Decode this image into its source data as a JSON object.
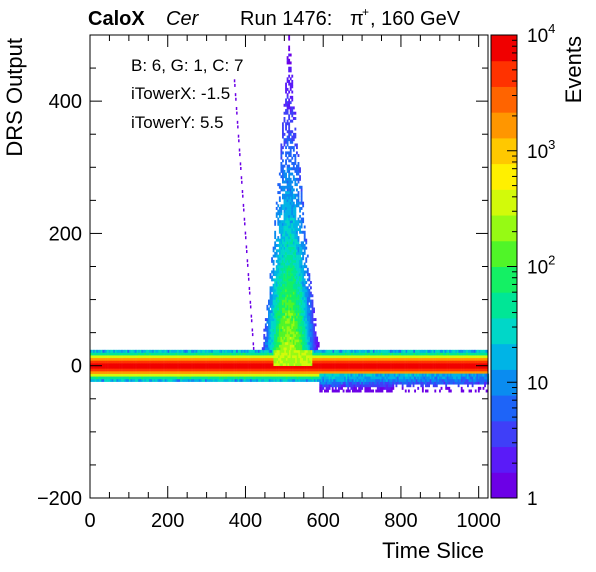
{
  "header": {
    "experiment": "CaloX",
    "channel": "Cer",
    "run": "Run 1476:",
    "particle": "π",
    "charge": "+",
    "energy": ", 160 GeV"
  },
  "info_box": {
    "line1": "B: 6, G: 1, C: 7",
    "line2": "iTowerX: -1.5",
    "line3": "iTowerY: 5.5"
  },
  "chart_data": {
    "type": "heatmap",
    "title": "",
    "xlabel": "Time Slice",
    "ylabel": "DRS Output",
    "zlabel": "Events",
    "xlim": [
      0,
      1024
    ],
    "ylim": [
      -200,
      500
    ],
    "zlim": [
      1,
      10000
    ],
    "zscale": "log",
    "x_ticks": [
      "0",
      "200",
      "400",
      "600",
      "800",
      "1000"
    ],
    "y_ticks": [
      "−200",
      "0",
      "200",
      "400"
    ],
    "z_ticks": [
      {
        "value": 1,
        "base": "1",
        "exp": ""
      },
      {
        "value": 10,
        "base": "10",
        "exp": ""
      },
      {
        "value": 100,
        "base": "10",
        "exp": "2"
      },
      {
        "value": 1000,
        "base": "10",
        "exp": "3"
      },
      {
        "value": 10000,
        "base": "10",
        "exp": "4"
      }
    ],
    "colormap": [
      "#6c00e6",
      "#5a1bf8",
      "#3f3ff8",
      "#1e64f8",
      "#0a8cf0",
      "#00b4e6",
      "#00d7c8",
      "#00e696",
      "#14f064",
      "#50f528",
      "#96fa14",
      "#d2fa0a",
      "#fff000",
      "#ffc800",
      "#ff9600",
      "#ff6400",
      "#ff3200",
      "#f00000"
    ],
    "baseline": {
      "x_range": [
        0,
        1024
      ],
      "y": 0,
      "peak_events": 8000
    },
    "pulse": {
      "x_start": 430,
      "x_peak": 510,
      "x_end": 600,
      "y_peak": 500,
      "max_events": 300
    },
    "undershoot": {
      "x_range": [
        590,
        1024
      ],
      "y_range": [
        -40,
        -12
      ],
      "max_events": 40
    },
    "precursor": {
      "x_range": [
        370,
        420
      ],
      "y_range": [
        0,
        420
      ],
      "events": 1
    }
  }
}
